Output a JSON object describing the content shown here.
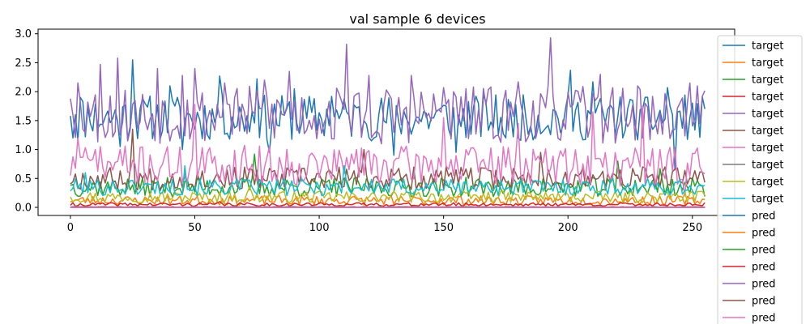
{
  "chart_data": {
    "type": "line",
    "title": "val sample 6 devices",
    "xlabel": "",
    "ylabel": "",
    "xlim": [
      -13,
      267
    ],
    "ylim": [
      -0.14,
      3.08
    ],
    "n_points": 256,
    "x_ticks": [
      0,
      50,
      100,
      150,
      200,
      250
    ],
    "x_tick_labels": [
      "0",
      "50",
      "100",
      "150",
      "200",
      "250"
    ],
    "y_ticks": [
      0.0,
      0.5,
      1.0,
      1.5,
      2.0,
      2.5,
      3.0
    ],
    "y_tick_labels": [
      "0.0",
      "0.5",
      "1.0",
      "1.5",
      "2.0",
      "2.5",
      "3.0"
    ],
    "grid": false,
    "legend_position": "top-right",
    "series": [
      {
        "name": "target",
        "color": "#1f77b4",
        "mean": 1.55,
        "amp": 0.4,
        "seed": 11,
        "peaks": [
          [
            0,
            1.58
          ],
          [
            1,
            1.2
          ],
          [
            2,
            1.6
          ],
          [
            3,
            1.15
          ],
          [
            4,
            1.9
          ],
          [
            8,
            1.45
          ],
          [
            20,
            1.05
          ],
          [
            25,
            2.55
          ],
          [
            28,
            1.7
          ],
          [
            40,
            2.1
          ],
          [
            45,
            1.0
          ],
          [
            60,
            2.27
          ],
          [
            75,
            2.22
          ],
          [
            80,
            0.95
          ],
          [
            90,
            2.05
          ],
          [
            105,
            1.92
          ],
          [
            130,
            0.9
          ],
          [
            155,
            0.95
          ],
          [
            175,
            1.2
          ],
          [
            185,
            1.4
          ],
          [
            201,
            2.37
          ],
          [
            210,
            2.17
          ],
          [
            230,
            1.7
          ],
          [
            240,
            2.07
          ],
          [
            243,
            0.65
          ],
          [
            249,
            1.55
          ]
        ]
      },
      {
        "name": "target",
        "color": "#ff7f0e",
        "mean": 0.12,
        "amp": 0.08,
        "seed": 23,
        "peaks": [
          [
            0,
            0.1
          ],
          [
            130,
            0.05
          ]
        ]
      },
      {
        "name": "target",
        "color": "#2ca02c",
        "mean": 0.35,
        "amp": 0.17,
        "seed": 37,
        "peaks": [
          [
            0,
            0.38
          ],
          [
            74,
            0.92
          ],
          [
            108,
            0.45
          ],
          [
            220,
            0.8
          ],
          [
            237,
            0.67
          ]
        ]
      },
      {
        "name": "target",
        "color": "#d62728",
        "mean": 0.05,
        "amp": 0.03,
        "seed": 41,
        "peaks": [
          [
            2,
            0.02
          ],
          [
            60,
            0.1
          ],
          [
            195,
            0.07
          ]
        ]
      },
      {
        "name": "target",
        "color": "#9467bd",
        "mean": 1.6,
        "amp": 0.5,
        "seed": 53,
        "peaks": [
          [
            0,
            1.88
          ],
          [
            1,
            1.6
          ],
          [
            3,
            2.15
          ],
          [
            7,
            1.82
          ],
          [
            12,
            2.47
          ],
          [
            19,
            2.58
          ],
          [
            30,
            1.5
          ],
          [
            35,
            2.4
          ],
          [
            45,
            2.28
          ],
          [
            50,
            2.4
          ],
          [
            62,
            2.15
          ],
          [
            78,
            2.2
          ],
          [
            82,
            1.2
          ],
          [
            88,
            2.35
          ],
          [
            111,
            2.82
          ],
          [
            120,
            2.28
          ],
          [
            125,
            1.1
          ],
          [
            137,
            2.28
          ],
          [
            150,
            2.07
          ],
          [
            162,
            2.08
          ],
          [
            180,
            2.17
          ],
          [
            193,
            2.93
          ],
          [
            205,
            1.82
          ],
          [
            213,
            2.3
          ],
          [
            228,
            2.1
          ],
          [
            236,
            1.27
          ],
          [
            249,
            2.15
          ]
        ]
      },
      {
        "name": "target",
        "color": "#8c564b",
        "mean": 0.5,
        "amp": 0.2,
        "seed": 67,
        "peaks": [
          [
            25,
            1.35
          ],
          [
            118,
            1.0
          ],
          [
            189,
            0.95
          ],
          [
            230,
            0.7
          ]
        ]
      },
      {
        "name": "target",
        "color": "#e377c2",
        "mean": 0.72,
        "amp": 0.35,
        "seed": 71,
        "peaks": [
          [
            0,
            0.55
          ],
          [
            3,
            1.2
          ],
          [
            10,
            1.0
          ],
          [
            20,
            1.0
          ],
          [
            50,
            1.78
          ],
          [
            70,
            1.07
          ],
          [
            115,
            1.0
          ],
          [
            150,
            1.55
          ],
          [
            180,
            1.45
          ],
          [
            210,
            1.65
          ],
          [
            230,
            1.75
          ],
          [
            247,
            0.2
          ]
        ]
      },
      {
        "name": "target",
        "color": "#7f7f7f",
        "mean": 0.01,
        "amp": 0.005,
        "seed": 83,
        "peaks": []
      },
      {
        "name": "target",
        "color": "#bcbd22",
        "mean": 0.18,
        "amp": 0.1,
        "seed": 97,
        "peaks": [
          [
            0,
            0.18
          ],
          [
            72,
            0.35
          ]
        ]
      },
      {
        "name": "target",
        "color": "#17becf",
        "mean": 0.35,
        "amp": 0.15,
        "seed": 101,
        "peaks": [
          [
            6,
            0.6
          ],
          [
            46,
            0.72
          ],
          [
            110,
            0.72
          ],
          [
            200,
            0.4
          ]
        ]
      },
      {
        "name": "pred",
        "color": "#1f77b4",
        "mean": 0.0,
        "amp": 0.0,
        "seed": 0,
        "peaks": []
      },
      {
        "name": "pred",
        "color": "#ff7f0e",
        "mean": 0.0,
        "amp": 0.0,
        "seed": 0,
        "peaks": []
      },
      {
        "name": "pred",
        "color": "#2ca02c",
        "mean": 0.0,
        "amp": 0.0,
        "seed": 0,
        "peaks": []
      },
      {
        "name": "pred",
        "color": "#d62728",
        "mean": 0.0,
        "amp": 0.0,
        "seed": 0,
        "peaks": []
      },
      {
        "name": "pred",
        "color": "#9467bd",
        "mean": 0.0,
        "amp": 0.0,
        "seed": 0,
        "peaks": []
      },
      {
        "name": "pred",
        "color": "#8c564b",
        "mean": 0.0,
        "amp": 0.0,
        "seed": 0,
        "peaks": []
      },
      {
        "name": "pred",
        "color": "#e377c2",
        "mean": 0.0,
        "amp": 0.0,
        "seed": 0,
        "peaks": []
      }
    ]
  }
}
